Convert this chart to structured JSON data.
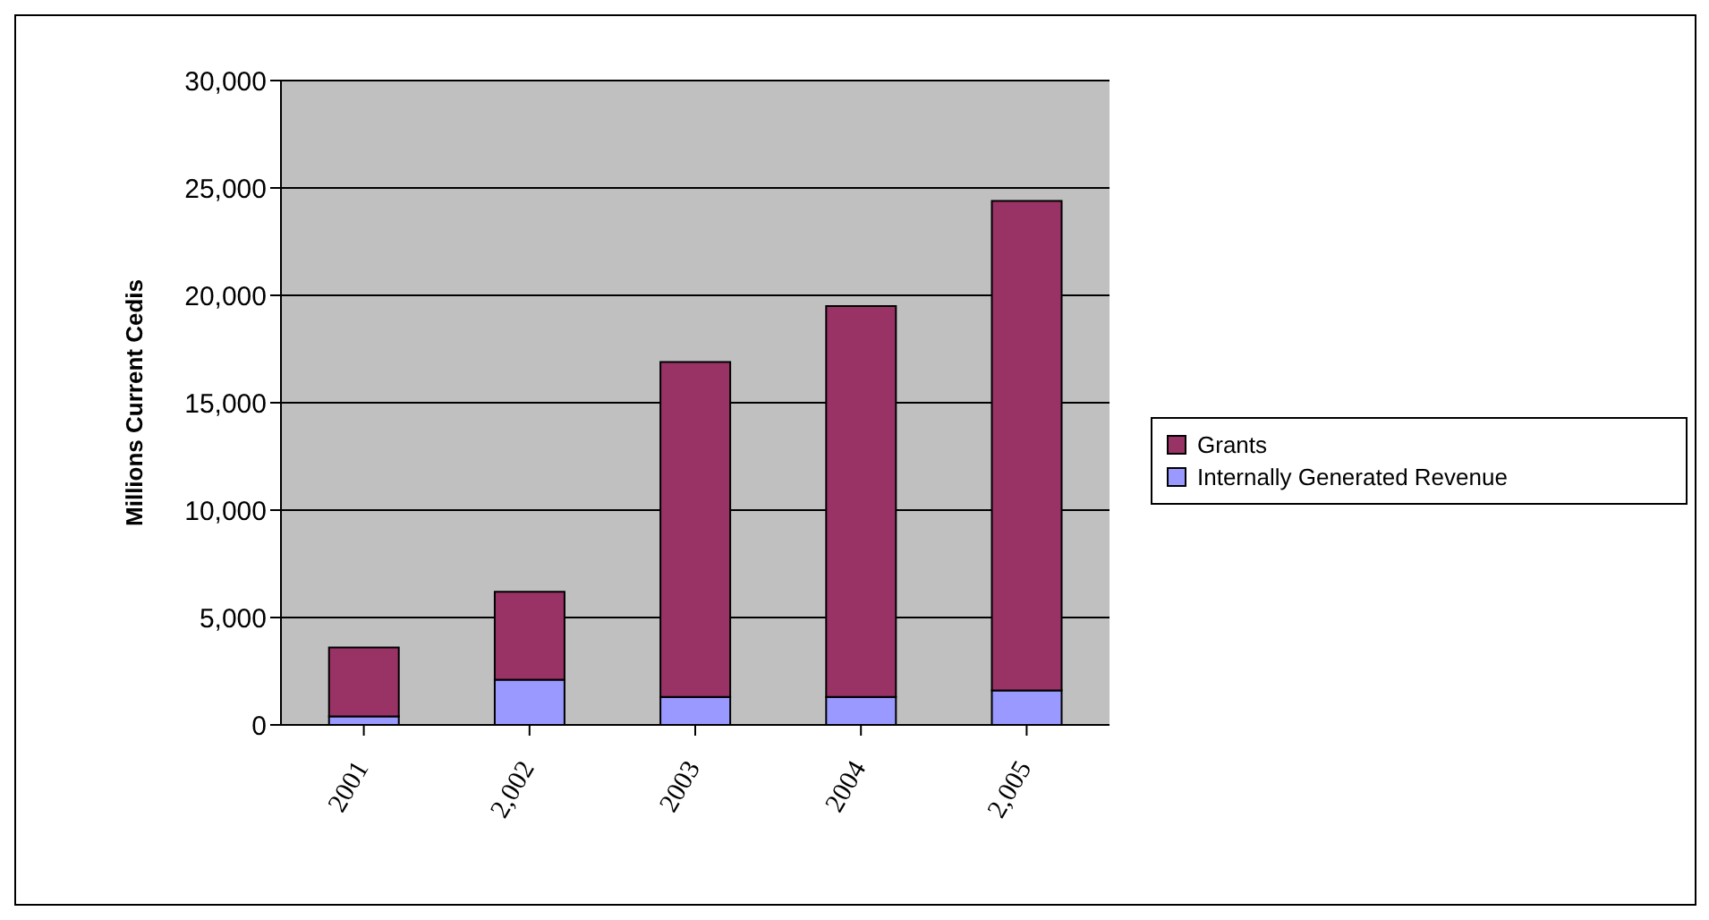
{
  "chart_data": {
    "type": "bar",
    "stacked": true,
    "ylabel": "Millions Current Cedis",
    "categories": [
      "2001",
      "2,002",
      "2003",
      "2004",
      "2,005"
    ],
    "series": [
      {
        "name": "Internally Generated Revenue",
        "color": "#9999ff",
        "values": [
          400,
          2100,
          1300,
          1300,
          1600
        ]
      },
      {
        "name": "Grants",
        "color": "#993366",
        "values": [
          3200,
          4100,
          15600,
          18200,
          22800
        ]
      }
    ],
    "ylim": [
      0,
      30000
    ],
    "yticks": [
      {
        "value": 0,
        "label": "0"
      },
      {
        "value": 5000,
        "label": "5,000"
      },
      {
        "value": 10000,
        "label": "10,000"
      },
      {
        "value": 15000,
        "label": "15,000"
      },
      {
        "value": 20000,
        "label": "20,000"
      },
      {
        "value": 25000,
        "label": "25,000"
      },
      {
        "value": 30000,
        "label": "30,000"
      }
    ],
    "grid": "y",
    "legend": "right"
  }
}
